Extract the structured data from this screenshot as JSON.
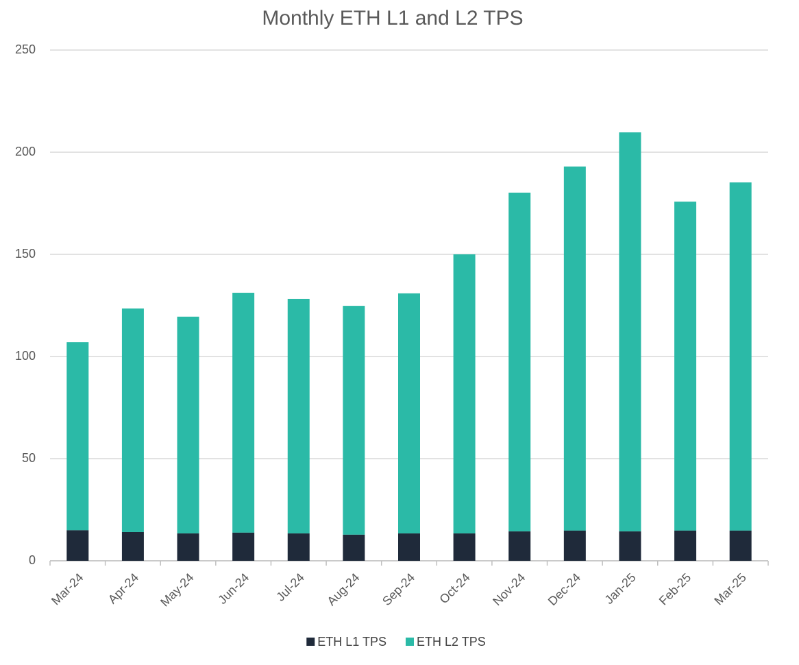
{
  "chart_data": {
    "type": "stacked-bar",
    "title": "Monthly ETH L1 and L2 TPS",
    "categories": [
      "Mar-24",
      "Apr-24",
      "May-24",
      "Jun-24",
      "Jul-24",
      "Aug-24",
      "Sep-24",
      "Oct-24",
      "Nov-24",
      "Dec-24",
      "Jan-25",
      "Feb-25",
      "Mar-25"
    ],
    "series": [
      {
        "name": "ETH L1 TPS",
        "color": "#1f2a3a",
        "values": [
          15,
          14.1,
          13.4,
          13.8,
          13.4,
          12.8,
          13.4,
          13.4,
          14.4,
          14.8,
          14.4,
          14.8,
          14.8
        ]
      },
      {
        "name": "ETH L2 TPS",
        "color": "#2bbaa7",
        "values": [
          92,
          109.4,
          106.1,
          117.4,
          114.8,
          112,
          117.5,
          136.6,
          165.8,
          178.2,
          195.3,
          161,
          170.4
        ]
      }
    ],
    "ylim": [
      0,
      250
    ],
    "yticks": [
      0,
      50,
      100,
      150,
      200,
      250
    ],
    "grid": true,
    "legend": "bottom"
  }
}
